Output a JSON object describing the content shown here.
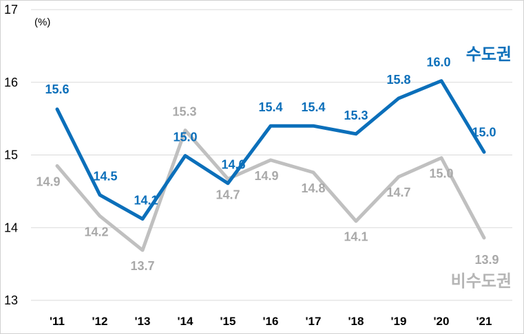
{
  "chart_data": {
    "type": "line",
    "unit_label": "(%)",
    "categories": [
      "'11",
      "'12",
      "'13",
      "'14",
      "'15",
      "'16",
      "'17",
      "'18",
      "'19",
      "'20",
      "'21"
    ],
    "ylim": [
      13,
      17
    ],
    "yticks": [
      13,
      14,
      15,
      16,
      17
    ],
    "grid": true,
    "series": [
      {
        "name": "수도권",
        "color": "#0b6fba",
        "values": [
          15.63,
          14.45,
          14.12,
          14.99,
          14.61,
          15.4,
          15.4,
          15.29,
          15.78,
          16.02,
          15.04
        ],
        "labels": [
          "15.6",
          "14.5",
          "14.1",
          "15.0",
          "14.6",
          "15.4",
          "15.4",
          "15.3",
          "15.8",
          "16.0",
          "15.0"
        ]
      },
      {
        "name": "비수도권",
        "color": "#c0c0c0",
        "values": [
          14.85,
          14.16,
          13.69,
          15.34,
          14.67,
          14.93,
          14.76,
          14.09,
          14.7,
          14.96,
          13.86
        ],
        "labels": [
          "14.9",
          "14.2",
          "13.7",
          "15.3",
          "14.7",
          "14.9",
          "14.8",
          "14.1",
          "14.7",
          "15.0",
          "13.9"
        ]
      }
    ]
  }
}
